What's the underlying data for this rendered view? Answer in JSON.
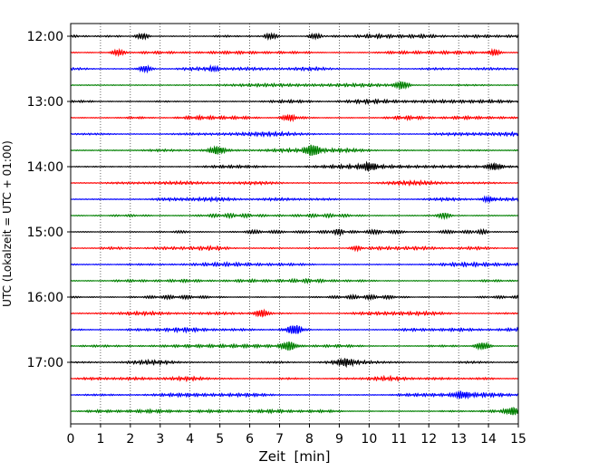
{
  "chart_data": {
    "type": "line",
    "title": "",
    "xlabel": "Zeit  [min]",
    "ylabel": "UTC (Lokalzeit = UTC + 01:00)",
    "xlim": [
      0,
      15
    ],
    "x_ticks": [
      "0",
      "1",
      "2",
      "3",
      "4",
      "5",
      "6",
      "7",
      "8",
      "9",
      "10",
      "11",
      "12",
      "13",
      "14",
      "15"
    ],
    "y_ticks": [
      "12:00",
      "13:00",
      "14:00",
      "15:00",
      "16:00",
      "17:00"
    ],
    "x_grid": true,
    "trace_interval_min": 15,
    "traces": [
      {
        "start": "12:00",
        "color": "#000000"
      },
      {
        "start": "12:15",
        "color": "#ff0000"
      },
      {
        "start": "12:30",
        "color": "#0000ff"
      },
      {
        "start": "12:45",
        "color": "#008000"
      },
      {
        "start": "13:00",
        "color": "#000000"
      },
      {
        "start": "13:15",
        "color": "#ff0000"
      },
      {
        "start": "13:30",
        "color": "#0000ff"
      },
      {
        "start": "13:45",
        "color": "#008000"
      },
      {
        "start": "14:00",
        "color": "#000000"
      },
      {
        "start": "14:15",
        "color": "#ff0000"
      },
      {
        "start": "14:30",
        "color": "#0000ff"
      },
      {
        "start": "14:45",
        "color": "#008000"
      },
      {
        "start": "15:00",
        "color": "#000000"
      },
      {
        "start": "15:15",
        "color": "#ff0000"
      },
      {
        "start": "15:30",
        "color": "#0000ff"
      },
      {
        "start": "15:45",
        "color": "#008000"
      },
      {
        "start": "16:00",
        "color": "#000000"
      },
      {
        "start": "16:15",
        "color": "#ff0000"
      },
      {
        "start": "16:30",
        "color": "#0000ff"
      },
      {
        "start": "16:45",
        "color": "#008000"
      },
      {
        "start": "17:00",
        "color": "#000000"
      },
      {
        "start": "17:15",
        "color": "#ff0000"
      },
      {
        "start": "17:30",
        "color": "#0000ff"
      },
      {
        "start": "17:45",
        "color": "#008000"
      }
    ],
    "events": [
      {
        "trace": "12:00",
        "x": 2.4,
        "amp": 0.7
      },
      {
        "trace": "12:00",
        "x": 6.7,
        "amp": 0.8
      },
      {
        "trace": "12:00",
        "x": 8.2,
        "amp": 0.7
      },
      {
        "trace": "12:15",
        "x": 1.6,
        "amp": 0.7
      },
      {
        "trace": "12:15",
        "x": 14.2,
        "amp": 0.7
      },
      {
        "trace": "12:30",
        "x": 2.5,
        "amp": 0.7
      },
      {
        "trace": "12:30",
        "x": 4.8,
        "amp": 0.6
      },
      {
        "trace": "12:45",
        "x": 11.1,
        "amp": 0.9
      },
      {
        "trace": "13:15",
        "x": 7.3,
        "amp": 0.6
      },
      {
        "trace": "13:45",
        "x": 4.9,
        "amp": 0.8
      },
      {
        "trace": "13:45",
        "x": 8.1,
        "amp": 1.2
      },
      {
        "trace": "14:00",
        "x": 10.0,
        "amp": 0.8
      },
      {
        "trace": "14:00",
        "x": 14.2,
        "amp": 0.7
      },
      {
        "trace": "14:30",
        "x": 14.0,
        "amp": 0.6
      },
      {
        "trace": "14:45",
        "x": 12.5,
        "amp": 0.7
      },
      {
        "trace": "15:00",
        "x": 9.0,
        "amp": 0.8
      },
      {
        "trace": "15:00",
        "x": 13.8,
        "amp": 0.6
      },
      {
        "trace": "15:15",
        "x": 9.6,
        "amp": 0.6
      },
      {
        "trace": "16:15",
        "x": 6.4,
        "amp": 0.8
      },
      {
        "trace": "16:30",
        "x": 7.5,
        "amp": 1.0
      },
      {
        "trace": "16:45",
        "x": 7.3,
        "amp": 1.0
      },
      {
        "trace": "16:45",
        "x": 13.8,
        "amp": 0.8
      },
      {
        "trace": "17:00",
        "x": 9.2,
        "amp": 0.6
      },
      {
        "trace": "17:30",
        "x": 13.1,
        "amp": 0.7
      },
      {
        "trace": "17:45",
        "x": 14.8,
        "amp": 0.9
      }
    ]
  }
}
